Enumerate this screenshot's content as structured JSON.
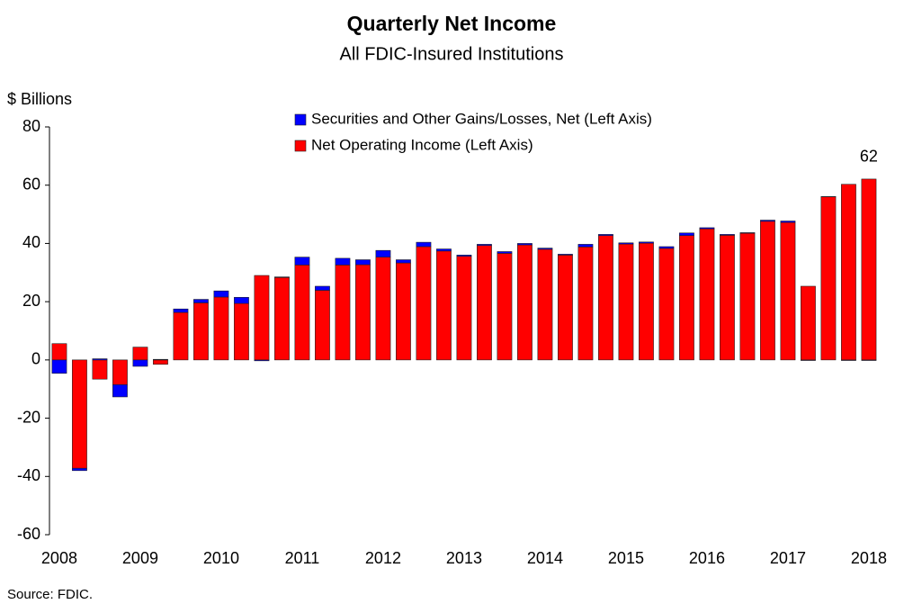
{
  "chart_data": {
    "type": "stacked-bar",
    "title": "Quarterly Net Income",
    "subtitle": "All FDIC-Insured Institutions",
    "y_axis_label": "$ Billions",
    "source": "Source:  FDIC.",
    "annotation": "62",
    "categories": [
      "2008",
      null,
      null,
      null,
      "2009",
      null,
      null,
      null,
      "2010",
      null,
      null,
      null,
      "2011",
      null,
      null,
      null,
      "2012",
      null,
      null,
      null,
      "2013",
      null,
      null,
      null,
      "2014",
      null,
      null,
      null,
      "2015",
      null,
      null,
      null,
      "2016",
      null,
      null,
      null,
      "2017",
      null,
      null,
      null,
      "2018"
    ],
    "series": [
      {
        "name": "Securities and Other Gains/Losses, Net  (Left Axis)",
        "color": "#0000ff",
        "values": [
          -4.6,
          -0.8,
          0.4,
          -4.2,
          -2.2,
          0.2,
          1.2,
          1.2,
          2.1,
          2.1,
          -0.3,
          0.2,
          2.7,
          1.4,
          2.3,
          1.7,
          2.3,
          1.1,
          1.5,
          0.7,
          0.4,
          0.4,
          0.6,
          0.5,
          0.4,
          0.3,
          0.9,
          0.4,
          0.4,
          0.4,
          0.6,
          0.9,
          0.4,
          0.3,
          0.2,
          0.4,
          0.5,
          -0.2,
          0.1,
          -0.2,
          -0.2
        ]
      },
      {
        "name": "Net Operating Income (Left Axis)",
        "color": "#ff0000",
        "values": [
          5.6,
          -37.2,
          -6.6,
          -8.5,
          4.4,
          -1.5,
          16.3,
          19.6,
          21.6,
          19.4,
          29.0,
          28.3,
          32.6,
          23.9,
          32.6,
          32.7,
          35.3,
          33.3,
          38.9,
          37.4,
          35.6,
          39.3,
          36.6,
          39.5,
          38.0,
          36.0,
          38.8,
          42.7,
          39.8,
          40.1,
          38.3,
          42.7,
          45.0,
          42.8,
          43.5,
          47.6,
          47.2,
          25.3,
          56.0,
          60.3,
          62.1
        ]
      }
    ],
    "ylim": [
      -60,
      80
    ],
    "yticks": [
      -60,
      -40,
      -20,
      0,
      20,
      40,
      60,
      80
    ],
    "grid": false,
    "legend": "top"
  }
}
